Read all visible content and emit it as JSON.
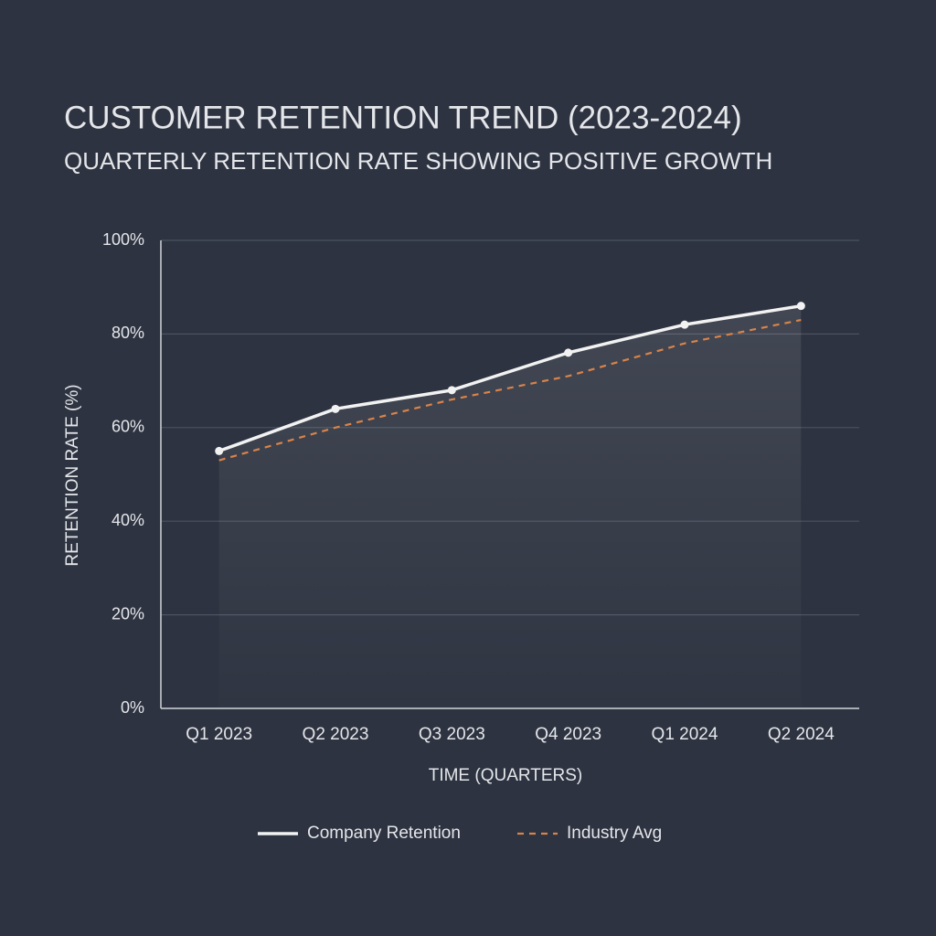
{
  "chart_data": {
    "type": "line",
    "title": "CUSTOMER RETENTION TREND (2023-2024)",
    "subtitle": "QUARTERLY RETENTION RATE SHOWING POSITIVE GROWTH",
    "x_label": "TIME (QUARTERS)",
    "y_label": "RETENTION RATE (%)",
    "categories": [
      "Q1 2023",
      "Q2 2023",
      "Q3 2023",
      "Q4 2023",
      "Q1 2024",
      "Q2 2024"
    ],
    "series": [
      {
        "name": "Company Retention",
        "color": "#f2f2f2",
        "dashed": false,
        "markers": true,
        "values": [
          55,
          64,
          68,
          76,
          82,
          86
        ]
      },
      {
        "name": "Industry Avg",
        "color": "#d9834a",
        "dashed": true,
        "markers": false,
        "values": [
          53,
          60,
          66,
          71,
          78,
          83
        ]
      }
    ],
    "ylim": [
      0,
      100
    ],
    "yticks": [
      {
        "value": 0,
        "label": "0%"
      },
      {
        "value": 20,
        "label": "20%"
      },
      {
        "value": 40,
        "label": "40%"
      },
      {
        "value": 60,
        "label": "60%"
      },
      {
        "value": 80,
        "label": "80%"
      },
      {
        "value": 100,
        "label": "100%"
      }
    ],
    "grid": true
  }
}
